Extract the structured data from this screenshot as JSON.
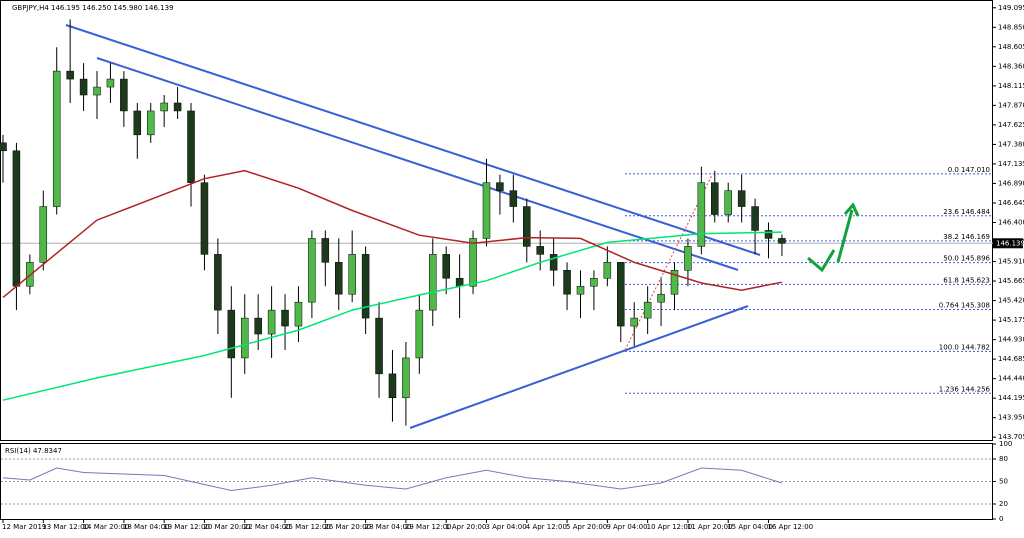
{
  "chart_data": {
    "type": "candlestick",
    "title": "GBPJPY,H4  146.195 146.250 145.980 146.139",
    "ohlc": [
      [
        147.4,
        147.5,
        146.9,
        147.3
      ],
      [
        147.3,
        147.4,
        145.3,
        145.6
      ],
      [
        145.6,
        146.0,
        145.5,
        145.9
      ],
      [
        145.9,
        146.8,
        145.8,
        146.6
      ],
      [
        146.6,
        148.6,
        146.5,
        148.3
      ],
      [
        148.3,
        148.95,
        147.9,
        148.2
      ],
      [
        148.2,
        148.4,
        147.8,
        148.0
      ],
      [
        148.0,
        148.3,
        147.7,
        148.1
      ],
      [
        148.1,
        148.4,
        147.9,
        148.2
      ],
      [
        148.2,
        148.3,
        147.6,
        147.8
      ],
      [
        147.8,
        147.9,
        147.2,
        147.5
      ],
      [
        147.5,
        147.9,
        147.4,
        147.8
      ],
      [
        147.8,
        148.0,
        147.6,
        147.9
      ],
      [
        147.9,
        148.1,
        147.7,
        147.8
      ],
      [
        147.8,
        147.9,
        146.6,
        146.9
      ],
      [
        146.9,
        147.0,
        145.8,
        146.0
      ],
      [
        146.0,
        146.2,
        145.0,
        145.3
      ],
      [
        145.3,
        145.6,
        144.2,
        144.7
      ],
      [
        144.7,
        145.5,
        144.5,
        145.2
      ],
      [
        145.2,
        145.5,
        144.8,
        145.0
      ],
      [
        145.0,
        145.6,
        144.7,
        145.3
      ],
      [
        145.3,
        145.5,
        144.8,
        145.1
      ],
      [
        145.1,
        145.6,
        144.9,
        145.4
      ],
      [
        145.4,
        146.3,
        145.2,
        146.2
      ],
      [
        146.2,
        146.3,
        145.6,
        145.9
      ],
      [
        145.9,
        146.2,
        145.3,
        145.5
      ],
      [
        145.5,
        146.3,
        145.4,
        146.0
      ],
      [
        146.0,
        146.1,
        145.0,
        145.2
      ],
      [
        145.2,
        145.4,
        144.2,
        144.5
      ],
      [
        144.5,
        144.8,
        143.9,
        144.2
      ],
      [
        144.2,
        144.9,
        143.85,
        144.7
      ],
      [
        144.7,
        145.5,
        144.5,
        145.3
      ],
      [
        145.3,
        146.2,
        145.1,
        146.0
      ],
      [
        146.0,
        146.1,
        145.5,
        145.7
      ],
      [
        145.7,
        146.0,
        145.2,
        145.6
      ],
      [
        145.6,
        146.3,
        145.5,
        146.2
      ],
      [
        146.2,
        147.2,
        146.1,
        146.9
      ],
      [
        146.9,
        147.0,
        146.5,
        146.8
      ],
      [
        146.8,
        147.0,
        146.4,
        146.6
      ],
      [
        146.6,
        146.7,
        145.9,
        146.1
      ],
      [
        146.1,
        146.3,
        145.8,
        146.0
      ],
      [
        146.0,
        146.2,
        145.6,
        145.8
      ],
      [
        145.8,
        145.9,
        145.3,
        145.5
      ],
      [
        145.5,
        145.8,
        145.2,
        145.6
      ],
      [
        145.6,
        145.8,
        145.3,
        145.7
      ],
      [
        145.7,
        146.1,
        145.6,
        145.9
      ],
      [
        145.9,
        145.9,
        144.9,
        145.1
      ],
      [
        145.1,
        145.4,
        144.85,
        145.2
      ],
      [
        145.2,
        145.6,
        145.0,
        145.4
      ],
      [
        145.4,
        145.7,
        145.1,
        145.5
      ],
      [
        145.5,
        145.9,
        145.3,
        145.8
      ],
      [
        145.8,
        146.2,
        145.6,
        146.1
      ],
      [
        146.1,
        147.1,
        146.0,
        146.9
      ],
      [
        146.9,
        147.05,
        146.4,
        146.5
      ],
      [
        146.5,
        146.9,
        146.4,
        146.8
      ],
      [
        146.8,
        147.0,
        146.4,
        146.6
      ],
      [
        146.6,
        146.7,
        146.0,
        146.3
      ],
      [
        146.3,
        146.4,
        145.95,
        146.2
      ],
      [
        146.2,
        146.25,
        145.98,
        146.139
      ]
    ],
    "up_color": "#4fb848",
    "down_color": "#1d3a1d",
    "moving_averages": [
      {
        "color": "#00e676",
        "x": [
          0,
          7,
          15,
          22,
          26,
          31,
          36,
          40,
          45,
          52,
          58
        ],
        "values": [
          144.17,
          144.45,
          144.73,
          145.05,
          145.3,
          145.49,
          145.67,
          145.9,
          146.15,
          146.26,
          146.28
        ]
      },
      {
        "color": "#b22222",
        "x": [
          0,
          7,
          15,
          18,
          22,
          26,
          31,
          35,
          39,
          43,
          47,
          52,
          55,
          58
        ],
        "values": [
          145.46,
          146.43,
          146.95,
          147.05,
          146.83,
          146.55,
          146.24,
          146.14,
          146.21,
          146.2,
          145.9,
          145.64,
          145.55,
          145.65
        ]
      }
    ],
    "ylim": [
      143.67,
      149.18
    ],
    "yticks": [
      149.095,
      {
        "value": 148.85,
        "label": "148.850"
      },
      148.605,
      {
        "value": 148.36,
        "label": "148.360"
      },
      148.115,
      {
        "value": 147.87,
        "label": "147.870"
      },
      147.625,
      {
        "value": 147.38,
        "label": "147.380"
      },
      147.135,
      {
        "value": 146.89,
        "label": "146.890"
      },
      146.645,
      {
        "value": 146.4,
        "label": "146.400"
      },
      146.155,
      {
        "value": 145.91,
        "label": "145.910"
      },
      145.665,
      {
        "value": 145.42,
        "label": "145.420"
      },
      145.175,
      {
        "value": 144.93,
        "label": "144.930"
      },
      144.685,
      {
        "value": 144.44,
        "label": "144.440"
      },
      144.195,
      {
        "value": 143.95,
        "label": "143.950"
      },
      143.705
    ],
    "current_price": {
      "value": 146.139,
      "label": "146.139"
    },
    "fibonacci": [
      {
        "value": 147.01,
        "label": "0.0 147.010"
      },
      {
        "value": 146.484,
        "label": "23.6 146.484"
      },
      {
        "value": 146.169,
        "label": "38.2 146.169"
      },
      {
        "value": 145.896,
        "label": "50.0 145.896"
      },
      {
        "value": 145.623,
        "label": "61.8 145.623"
      },
      {
        "value": 145.308,
        "label": "0.764 145.308"
      },
      {
        "value": 144.782,
        "label": "100.0 144.782"
      },
      {
        "value": 144.256,
        "label": "1.236 144.256"
      }
    ],
    "xticks": [
      {
        "value": 0,
        "label": "12 Mar 2019"
      },
      {
        "value": 3,
        "label": "13 Mar 12:00"
      },
      {
        "value": 6,
        "label": "14 Mar 20:00"
      },
      {
        "value": 9,
        "label": "18 Mar 04:00"
      },
      {
        "value": 12,
        "label": "19 Mar 12:00"
      },
      {
        "value": 15,
        "label": "20 Mar 20:00"
      },
      {
        "value": 18,
        "label": "22 Mar 04:00"
      },
      {
        "value": 21,
        "label": "25 Mar 12:00"
      },
      {
        "value": 24,
        "label": "26 Mar 20:00"
      },
      {
        "value": 27,
        "label": "28 Mar 04:00"
      },
      {
        "value": 30,
        "label": "29 Mar 12:00"
      },
      {
        "value": 33,
        "label": "1 Apr 20:00"
      },
      {
        "value": 36,
        "label": "3 Apr 04:00"
      },
      {
        "value": 39,
        "label": "4 Apr 12:00"
      },
      {
        "value": 42,
        "label": "5 Apr 20:00"
      },
      {
        "value": 45,
        "label": "9 Apr 04:00"
      },
      {
        "value": 48,
        "label": "10 Apr 12:00"
      },
      {
        "value": 51,
        "label": "11 Apr 20:00"
      },
      {
        "value": 54,
        "label": "15 Apr 04:00"
      },
      {
        "value": 57,
        "label": "16 Apr 12:00"
      }
    ],
    "rsi": {
      "title": "RSI(14) 47.8347",
      "color": "#8a6fb8",
      "x": [
        0,
        2,
        4,
        6,
        9,
        12,
        14,
        17,
        20,
        23,
        27,
        30,
        33,
        36,
        39,
        42,
        46,
        49,
        52,
        55,
        58
      ],
      "values": [
        55,
        52,
        68,
        62,
        60,
        58,
        50,
        38,
        45,
        55,
        45,
        40,
        55,
        65,
        55,
        50,
        40,
        48,
        68,
        65,
        48
      ],
      "ylim": [
        0,
        100
      ],
      "yticks": [
        100,
        80,
        50,
        20,
        0
      ]
    }
  }
}
